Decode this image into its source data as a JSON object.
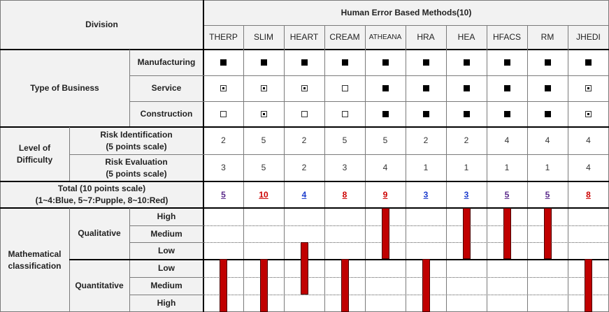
{
  "division_label": "Division",
  "header_title": "Human Error Based Methods(10)",
  "methods": [
    "THERP",
    "SLIM",
    "HEART",
    "CREAM",
    "ATHEANA",
    "HRA",
    "HEA",
    "HFACS",
    "RM",
    "JHEDI"
  ],
  "type_of_business": {
    "label": "Type of Business",
    "rows": [
      {
        "label": "Manufacturing",
        "marks": [
          "full",
          "full",
          "full",
          "full",
          "full",
          "full",
          "full",
          "full",
          "full",
          "full"
        ]
      },
      {
        "label": "Service",
        "marks": [
          "partial",
          "partial",
          "partial",
          "empty",
          "full",
          "full",
          "full",
          "full",
          "full",
          "partial"
        ]
      },
      {
        "label": "Construction",
        "marks": [
          "empty",
          "partial",
          "empty",
          "empty",
          "full",
          "full",
          "full",
          "full",
          "full",
          "partial"
        ]
      }
    ]
  },
  "difficulty": {
    "label_line1": "Level of",
    "label_line2": "Difficulty",
    "rows": [
      {
        "line1": "Risk Identification",
        "line2": "(5 points scale)",
        "values": [
          "2",
          "5",
          "2",
          "5",
          "5",
          "2",
          "2",
          "4",
          "4",
          "4"
        ]
      },
      {
        "line1": "Risk Evaluation",
        "line2": "(5 points scale)",
        "values": [
          "3",
          "5",
          "2",
          "3",
          "4",
          "1",
          "1",
          "1",
          "1",
          "4"
        ]
      }
    ]
  },
  "total": {
    "line1": "Total (10 points scale)",
    "line2": "(1~4:Blue, 5~7:Pupple, 8~10:Red)",
    "values": [
      "5",
      "10",
      "4",
      "8",
      "9",
      "3",
      "3",
      "5",
      "5",
      "8"
    ],
    "colors": [
      "#5a2a8a",
      "#cc0000",
      "#1a3acc",
      "#cc0000",
      "#cc0000",
      "#1a3acc",
      "#1a3acc",
      "#5a2a8a",
      "#5a2a8a",
      "#cc0000"
    ]
  },
  "math": {
    "label_line1": "Mathematical",
    "label_line2": "classification",
    "qualitative_label": "Qualitative",
    "quantitative_label": "Quantitative",
    "qual_levels": [
      "High",
      "Medium",
      "Low"
    ],
    "quant_levels": [
      "Low",
      "Medium",
      "High"
    ],
    "bar_color": "#c00000",
    "bars": [
      {
        "method": "THERP",
        "type": "quantitative",
        "level": "High"
      },
      {
        "method": "SLIM",
        "type": "quantitative",
        "level": "High"
      },
      {
        "method": "HEART",
        "type": "qualitative",
        "level": "Low",
        "extends_to": "quantitative Medium"
      },
      {
        "method": "CREAM",
        "type": "quantitative",
        "level": "High"
      },
      {
        "method": "ATHEANA",
        "type": "qualitative",
        "level": "High"
      },
      {
        "method": "HRA",
        "type": "quantitative",
        "level": "High"
      },
      {
        "method": "HEA",
        "type": "qualitative",
        "level": "High"
      },
      {
        "method": "HFACS",
        "type": "qualitative",
        "level": "High"
      },
      {
        "method": "RM",
        "type": "qualitative",
        "level": "High"
      },
      {
        "method": "JHEDI",
        "type": "quantitative",
        "level": "High"
      }
    ]
  }
}
